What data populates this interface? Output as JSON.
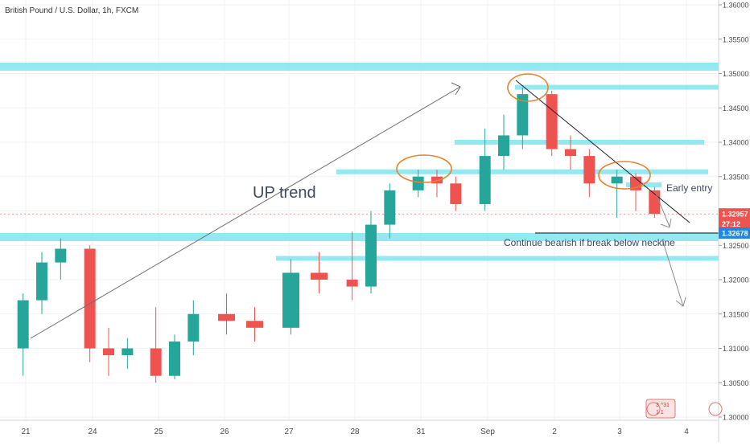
{
  "title": "British Pound / U.S. Dollar, 1h, FXCM",
  "chart_data": {
    "type": "candlestick",
    "symbol": "British Pound / U.S. Dollar",
    "interval": "1h",
    "broker": "FXCM",
    "ylim": [
      1.3,
      1.36
    ],
    "y_ticks": [
      "1.36000",
      "1.35500",
      "1.35000",
      "1.34500",
      "1.34000",
      "1.33500",
      "1.33000",
      "1.32500",
      "1.32000",
      "1.31500",
      "1.31000",
      "1.30500",
      "1.30000"
    ],
    "y_tick_values": [
      1.36,
      1.355,
      1.35,
      1.345,
      1.34,
      1.335,
      1.33,
      1.325,
      1.32,
      1.315,
      1.31,
      1.305,
      1.3
    ],
    "x_ticks": [
      "21",
      "24",
      "25",
      "26",
      "27",
      "28",
      "31",
      "Sep",
      "2",
      "3",
      "4"
    ],
    "price_labels": [
      {
        "name": "current",
        "text": "1.32957",
        "value": 1.32957,
        "color": "#ef5350"
      },
      {
        "name": "countdown",
        "text": "27:12",
        "value": 1.3281,
        "color": "#ef5350"
      },
      {
        "name": "neckline",
        "text": "1.32678",
        "value": 1.32678,
        "color": "#1e88e5"
      }
    ],
    "zones": [
      {
        "value": 1.351,
        "x_from": 0,
        "x_to": 893
      },
      {
        "value": 1.348,
        "x_from": 640,
        "x_to": 893
      },
      {
        "value": 1.34,
        "x_from": 565,
        "x_to": 875
      },
      {
        "value": 1.3357,
        "x_from": 418,
        "x_to": 880
      },
      {
        "value": 1.3262,
        "x_from": 0,
        "x_to": 893
      },
      {
        "value": 1.3231,
        "x_from": 343,
        "x_to": 893
      },
      {
        "value": 1.3338,
        "x_from": 778,
        "x_to": 822
      }
    ],
    "candles": [
      {
        "x": "21",
        "open": 1.31,
        "high": 1.318,
        "low": 1.306,
        "close": 1.317
      },
      {
        "x": "21",
        "open": 1.317,
        "high": 1.324,
        "low": 1.315,
        "close": 1.3225
      },
      {
        "x": "21",
        "open": 1.3225,
        "high": 1.326,
        "low": 1.32,
        "close": 1.3245
      },
      {
        "x": "24",
        "open": 1.3245,
        "high": 1.325,
        "low": 1.308,
        "close": 1.31
      },
      {
        "x": "24",
        "open": 1.31,
        "high": 1.313,
        "low": 1.306,
        "close": 1.309
      },
      {
        "x": "24",
        "open": 1.309,
        "high": 1.3115,
        "low": 1.307,
        "close": 1.31
      },
      {
        "x": "25",
        "open": 1.31,
        "high": 1.316,
        "low": 1.305,
        "close": 1.306
      },
      {
        "x": "25",
        "open": 1.306,
        "high": 1.312,
        "low": 1.3055,
        "close": 1.311
      },
      {
        "x": "25",
        "open": 1.311,
        "high": 1.317,
        "low": 1.309,
        "close": 1.315
      },
      {
        "x": "26",
        "open": 1.315,
        "high": 1.318,
        "low": 1.312,
        "close": 1.314
      },
      {
        "x": "26",
        "open": 1.314,
        "high": 1.316,
        "low": 1.311,
        "close": 1.313
      },
      {
        "x": "27",
        "open": 1.313,
        "high": 1.323,
        "low": 1.312,
        "close": 1.321
      },
      {
        "x": "27",
        "open": 1.321,
        "high": 1.324,
        "low": 1.318,
        "close": 1.32
      },
      {
        "x": "28",
        "open": 1.32,
        "high": 1.327,
        "low": 1.317,
        "close": 1.319
      },
      {
        "x": "28",
        "open": 1.319,
        "high": 1.33,
        "low": 1.318,
        "close": 1.328
      },
      {
        "x": "28",
        "open": 1.328,
        "high": 1.334,
        "low": 1.326,
        "close": 1.333
      },
      {
        "x": "31",
        "open": 1.333,
        "high": 1.336,
        "low": 1.332,
        "close": 1.335
      },
      {
        "x": "31",
        "open": 1.335,
        "high": 1.336,
        "low": 1.332,
        "close": 1.334
      },
      {
        "x": "31",
        "open": 1.334,
        "high": 1.335,
        "low": 1.33,
        "close": 1.331
      },
      {
        "x": "Sep",
        "open": 1.331,
        "high": 1.342,
        "low": 1.33,
        "close": 1.338
      },
      {
        "x": "Sep",
        "open": 1.338,
        "high": 1.344,
        "low": 1.336,
        "close": 1.341
      },
      {
        "x": "Sep",
        "open": 1.341,
        "high": 1.348,
        "low": 1.339,
        "close": 1.347
      },
      {
        "x": "2",
        "open": 1.347,
        "high": 1.3475,
        "low": 1.338,
        "close": 1.339
      },
      {
        "x": "2",
        "open": 1.339,
        "high": 1.341,
        "low": 1.336,
        "close": 1.338
      },
      {
        "x": "2",
        "open": 1.338,
        "high": 1.339,
        "low": 1.332,
        "close": 1.334
      },
      {
        "x": "3",
        "open": 1.334,
        "high": 1.336,
        "low": 1.329,
        "close": 1.335
      },
      {
        "x": "3",
        "open": 1.335,
        "high": 1.3355,
        "low": 1.33,
        "close": 1.333
      },
      {
        "x": "3",
        "open": 1.333,
        "high": 1.3335,
        "low": 1.329,
        "close": 1.32957
      }
    ]
  },
  "annotations": {
    "up_trend": "UP trend",
    "early_entry": "Early entry",
    "continue_text": "Continue bearish if break below neckine"
  },
  "watermark": {
    "line1": "3 ^31",
    "line2": "1 1"
  },
  "colors": {
    "bull": "#26a69a",
    "bear": "#ef5350",
    "zone": "#7fe5ee",
    "ellipse": "#e8822a",
    "trendline": "#1f1f1f",
    "arrow": "#8c8c8c",
    "neckline": "#2a3a4a",
    "current_price": "#ef5350"
  }
}
